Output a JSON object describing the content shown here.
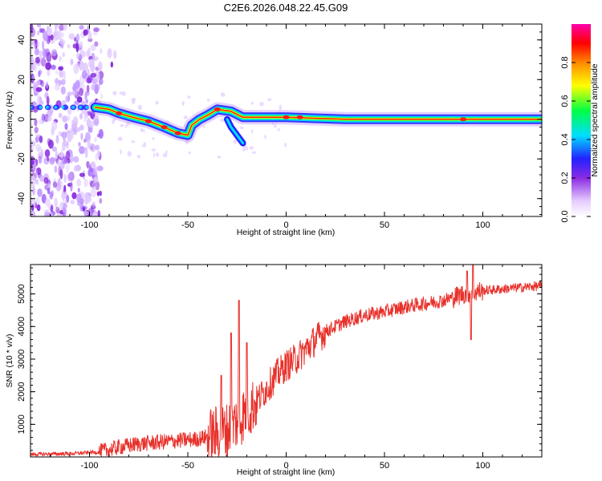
{
  "title": "C2E6.2026.048.22.45.G09",
  "colors": {
    "snr_line": "#e8302a",
    "ridge_core": "#ff1a1a",
    "ridge_mid": "#00ff66",
    "ridge_edge": "#2222ff",
    "noise": "#8a2be2"
  },
  "chart_data": [
    {
      "type": "heatmap",
      "title": "",
      "xlabel": "Height of straight line (km)",
      "ylabel": "Frequency (Hz)",
      "xlim": [
        -130,
        130
      ],
      "ylim": [
        -49,
        48
      ],
      "x_ticks": [
        -100,
        -50,
        0,
        50,
        100
      ],
      "y_ticks": [
        -40,
        -20,
        0,
        20,
        40
      ],
      "colorbar": {
        "label": "Normalized spectral amplitude",
        "range": [
          0,
          1
        ],
        "ticks": [
          0.0,
          0.2,
          0.4,
          0.6,
          0.8
        ],
        "tick_labels": [
          "0.0",
          "0.2",
          "0.4",
          "0.6",
          "0.8"
        ],
        "colormap": "rainbow (white-violet-blue-cyan-green-yellow-red-magenta)"
      },
      "ridge_path": [
        {
          "x": -97,
          "y": 6
        },
        {
          "x": -90,
          "y": 5
        },
        {
          "x": -85,
          "y": 3
        },
        {
          "x": -78,
          "y": 1
        },
        {
          "x": -70,
          "y": -1
        },
        {
          "x": -62,
          "y": -4
        },
        {
          "x": -55,
          "y": -7
        },
        {
          "x": -50,
          "y": -8
        },
        {
          "x": -48,
          "y": -3
        },
        {
          "x": -44,
          "y": 0
        },
        {
          "x": -40,
          "y": 2
        },
        {
          "x": -35,
          "y": 5
        },
        {
          "x": -28,
          "y": 4
        },
        {
          "x": -22,
          "y": 1
        },
        {
          "x": -15,
          "y": 1
        },
        {
          "x": 0,
          "y": 1
        },
        {
          "x": 30,
          "y": 0
        },
        {
          "x": 60,
          "y": 0
        },
        {
          "x": 90,
          "y": 0
        },
        {
          "x": 130,
          "y": 0
        }
      ]
    },
    {
      "type": "line",
      "title": "",
      "xlabel": "Height of straight line (km)",
      "ylabel": "SNR (10 * v/v)",
      "xlim": [
        -130,
        130
      ],
      "ylim": [
        0,
        5900
      ],
      "x_ticks": [
        -100,
        -50,
        0,
        50,
        100
      ],
      "y_ticks": [
        1000,
        2000,
        3000,
        4000,
        5000
      ],
      "series": [
        {
          "name": "SNR",
          "trend": [
            {
              "x": -130,
              "y": 80
            },
            {
              "x": -110,
              "y": 100
            },
            {
              "x": -95,
              "y": 150
            },
            {
              "x": -85,
              "y": 300
            },
            {
              "x": -75,
              "y": 400
            },
            {
              "x": -65,
              "y": 450
            },
            {
              "x": -55,
              "y": 500
            },
            {
              "x": -45,
              "y": 550
            },
            {
              "x": -38,
              "y": 650
            },
            {
              "x": -30,
              "y": 800
            },
            {
              "x": -25,
              "y": 1100
            },
            {
              "x": -20,
              "y": 1400
            },
            {
              "x": -15,
              "y": 1700
            },
            {
              "x": -10,
              "y": 2100
            },
            {
              "x": -5,
              "y": 2500
            },
            {
              "x": 0,
              "y": 2800
            },
            {
              "x": 5,
              "y": 3000
            },
            {
              "x": 10,
              "y": 3300
            },
            {
              "x": 15,
              "y": 3600
            },
            {
              "x": 20,
              "y": 3850
            },
            {
              "x": 30,
              "y": 4150
            },
            {
              "x": 40,
              "y": 4350
            },
            {
              "x": 50,
              "y": 4450
            },
            {
              "x": 60,
              "y": 4600
            },
            {
              "x": 70,
              "y": 4700
            },
            {
              "x": 80,
              "y": 4800
            },
            {
              "x": 90,
              "y": 5000
            },
            {
              "x": 100,
              "y": 5100
            },
            {
              "x": 110,
              "y": 5150
            },
            {
              "x": 120,
              "y": 5200
            },
            {
              "x": 130,
              "y": 5250
            }
          ],
          "spikes": [
            {
              "x": -24,
              "y": 4800
            },
            {
              "x": -28,
              "y": 3800
            },
            {
              "x": -20,
              "y": 3500
            },
            {
              "x": -33,
              "y": 2500
            },
            {
              "x": 94,
              "y": 3600
            },
            {
              "x": 95,
              "y": 5950
            },
            {
              "x": 92,
              "y": 5700
            }
          ]
        }
      ]
    }
  ]
}
